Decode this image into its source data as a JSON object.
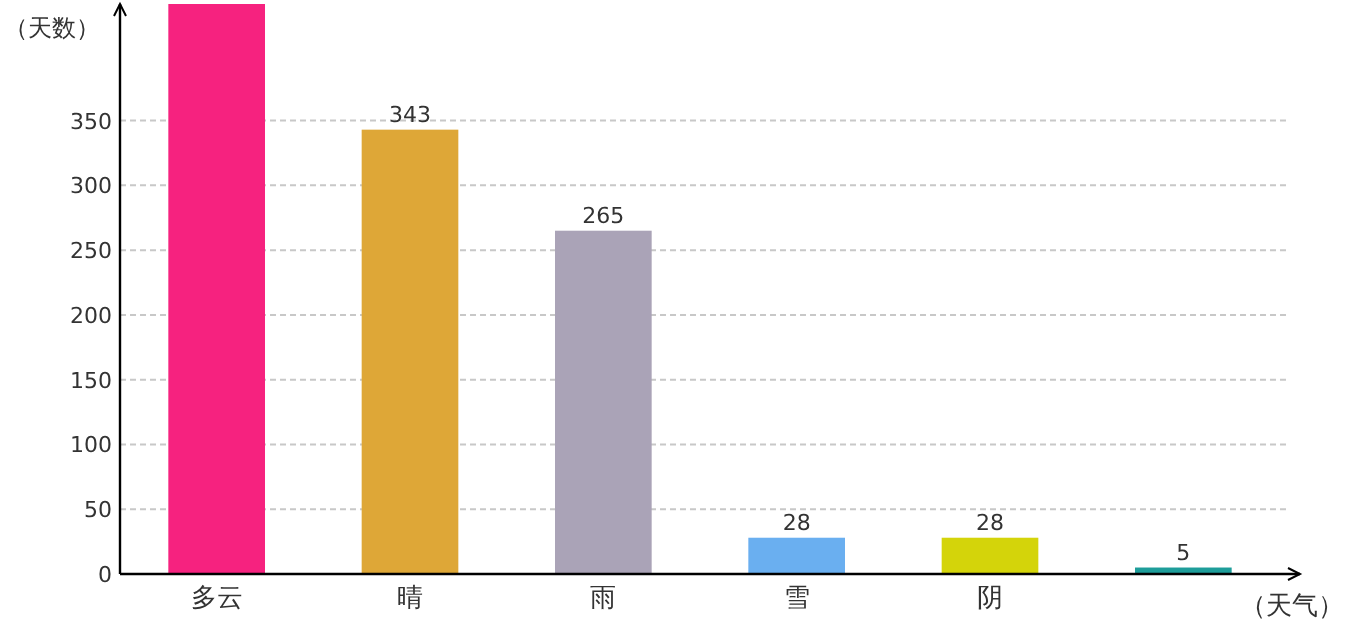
{
  "chart_data": {
    "type": "bar",
    "categories": [
      "多云",
      "晴",
      "雨",
      "雪",
      "阴",
      null
    ],
    "values": [
      440,
      343,
      265,
      28,
      28,
      5
    ],
    "value_labels": [
      null,
      "343",
      "265",
      "28",
      "28",
      "5"
    ],
    "colors": [
      "#f6227f",
      "#dea737",
      "#aaa3b7",
      "#6aaff0",
      "#d4d40a",
      "#1e9d9a"
    ],
    "xlabel": "（天气）",
    "ylabel": "（天数）",
    "ylim": [
      0,
      440
    ],
    "yticks": [
      0,
      50,
      100,
      150,
      200,
      250,
      300,
      350
    ],
    "grid": "y"
  }
}
